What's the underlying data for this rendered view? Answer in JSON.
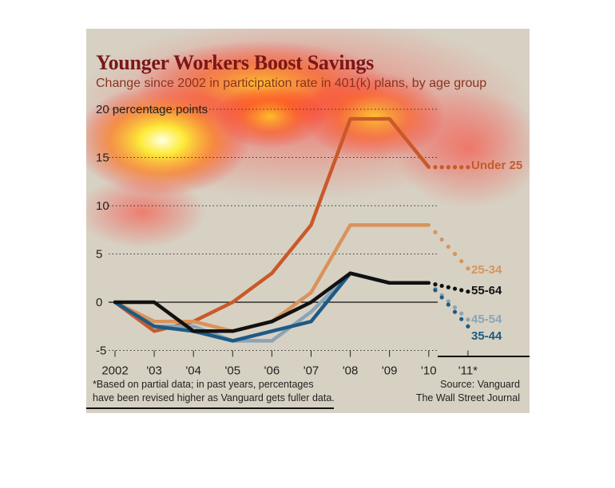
{
  "title": "Younger Workers Boost Savings",
  "subtitle": "Change since 2002 in participation rate in 401(k) plans, by age group",
  "footnote": [
    "*Based on partial data; in past years, percentages",
    "have been revised higher as Vanguard gets fuller data."
  ],
  "source": [
    "Source: Vanguard",
    "The Wall Street Journal"
  ],
  "chart_data": {
    "type": "line",
    "x": [
      "2002",
      "'03",
      "'04",
      "'05",
      "'06",
      "'07",
      "'08",
      "'09",
      "'10",
      "'11*"
    ],
    "ylim": [
      -5,
      20
    ],
    "yticks": [
      "-5",
      "0",
      "5",
      "10",
      "15",
      "20 percentage points"
    ],
    "ytick_values": [
      -5,
      0,
      5,
      10,
      15,
      20
    ],
    "grid": true,
    "estimated_from_index": 8,
    "series": [
      {
        "name": "Under 25",
        "color": "#c9592a",
        "values": [
          0,
          -3,
          -2,
          0,
          3,
          8,
          19,
          19,
          14,
          14
        ]
      },
      {
        "name": "25-34",
        "color": "#d9935a",
        "values": [
          0,
          -2,
          -2,
          -3,
          -2,
          1,
          8,
          8,
          8,
          3.5
        ]
      },
      {
        "name": "55-64",
        "color": "#111111",
        "values": [
          0,
          0,
          -3,
          -3,
          -2,
          0,
          3,
          2,
          2,
          1.1
        ]
      },
      {
        "name": "45-54",
        "color": "#8da3b5",
        "values": [
          0,
          -2.5,
          -2.5,
          -4,
          -4,
          -1,
          3,
          2,
          2,
          -1.8
        ]
      },
      {
        "name": "35-44",
        "color": "#1d5a86",
        "values": [
          0,
          -2.5,
          -3,
          -4,
          -3,
          -2,
          3,
          2,
          2,
          -2.5
        ]
      }
    ]
  }
}
